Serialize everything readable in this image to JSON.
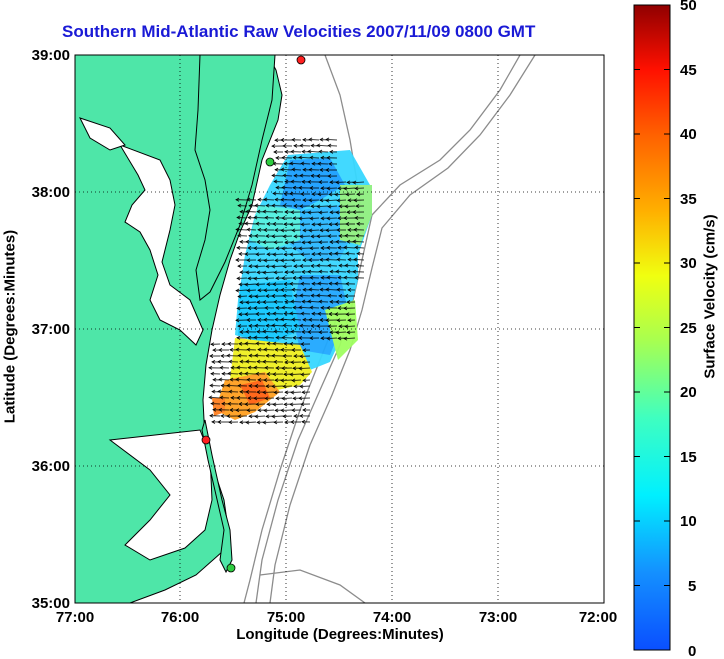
{
  "title": "Southern Mid-Atlantic Raw Velocities 2007/11/09 0800 GMT",
  "x_axis": {
    "label": "Longitude (Degrees:Minutes)",
    "ticks": [
      "77:00",
      "76:00",
      "75:00",
      "74:00",
      "73:00",
      "72:00"
    ]
  },
  "y_axis": {
    "label": "Latitude (Degrees:Minutes)",
    "ticks": [
      "39:00",
      "38:00",
      "37:00",
      "36:00",
      "35:00"
    ]
  },
  "colorbar": {
    "label": "Surface Velocity (cm/s)",
    "ticks": [
      "50",
      "45",
      "40",
      "35",
      "30",
      "25",
      "20",
      "15",
      "10",
      "5",
      "0"
    ],
    "range": [
      0,
      50
    ],
    "colormap": "jet"
  },
  "map": {
    "land_color": "#4ee6a8",
    "coast_color": "#000000",
    "bathymetry_color": "#8c8c8c",
    "grid": "dotted"
  },
  "stations": [
    {
      "color": "#ff2020"
    },
    {
      "color": "#2ecc40"
    },
    {
      "color": "#ff2020"
    },
    {
      "color": "#2ecc40"
    }
  ]
}
